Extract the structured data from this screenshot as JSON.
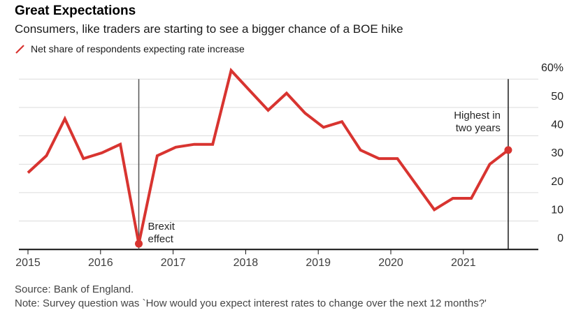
{
  "header": {
    "title": "Great Expectations",
    "subtitle": "Consumers, like traders are starting to see a bigger chance of a BOE hike"
  },
  "legend": {
    "label": "Net share of respondents expecting rate increase",
    "marker_color": "#d83430"
  },
  "chart_data": {
    "type": "line",
    "title": "Great Expectations",
    "subtitle": "Consumers, like traders are starting to see a bigger chance of a BOE hike",
    "series": [
      {
        "name": "Net share of respondents expecting rate increase",
        "color": "#d83430",
        "x": [
          "Feb 2015",
          "May 2015",
          "Aug 2015",
          "Nov 2015",
          "Feb 2016",
          "May 2016",
          "Aug 2016",
          "Nov 2016",
          "Feb 2017",
          "May 2017",
          "Aug 2017",
          "Nov 2017",
          "Feb 2018",
          "May 2018",
          "Aug 2018",
          "Nov 2018",
          "Feb 2019",
          "May 2019",
          "Aug 2019",
          "Nov 2019",
          "Feb 2020",
          "May 2020",
          "Aug 2020",
          "Nov 2020",
          "Feb 2021",
          "May 2021",
          "Aug 2021"
        ],
        "values": [
          27,
          33,
          46,
          32,
          34,
          37,
          2,
          33,
          36,
          37,
          37,
          63,
          56,
          49,
          55,
          48,
          43,
          45,
          35,
          32,
          32,
          23,
          14,
          18,
          18,
          30,
          35
        ]
      }
    ],
    "xtick_labels": [
      "2015",
      "2016",
      "2017",
      "2018",
      "2019",
      "2020",
      "2021"
    ],
    "ytick_values": [
      0,
      10,
      20,
      30,
      40,
      50,
      60
    ],
    "ytick_labels": [
      "0",
      "10",
      "20",
      "30",
      "40",
      "50",
      "60%"
    ],
    "ylim": [
      0,
      60
    ],
    "unit": "%",
    "grid": "horizontal",
    "axis_side": "right",
    "legend_position": "top-left",
    "colors": {
      "line": "#d83430",
      "gridline": "#dcdcdc",
      "axis": "#111111",
      "brexit_line": "#555555",
      "latest_line": "#1a1a1a",
      "tick_text": "#3d3d3d",
      "annotation_text": "#262626"
    },
    "annotations": [
      {
        "id": "brexit",
        "lines": [
          "Brexit",
          "effect"
        ],
        "point_index": 6,
        "align": "left"
      },
      {
        "id": "highest",
        "lines": [
          "Highest in",
          "two years"
        ],
        "point_index": 26,
        "align": "right"
      }
    ],
    "vertical_lines": [
      {
        "id": "brexit-line",
        "point_index": 6
      },
      {
        "id": "latest-line",
        "point_index": 26
      }
    ],
    "marker_points": [
      6,
      26
    ]
  },
  "footer": {
    "source": "Source: Bank of England.",
    "note": "Note: Survey question was `How would you expect interest rates to change over the next 12 months?'"
  }
}
